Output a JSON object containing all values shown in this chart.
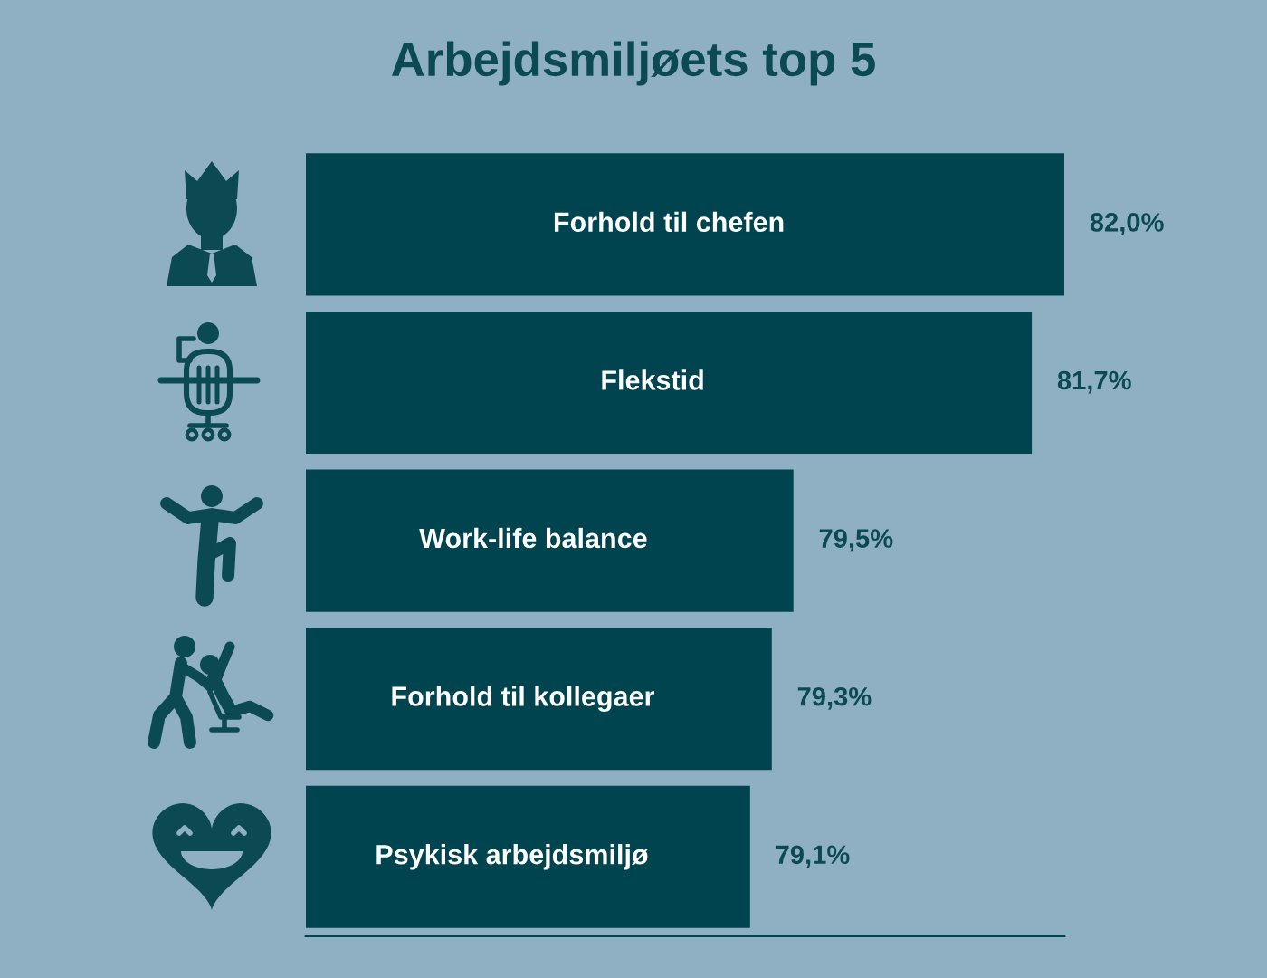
{
  "chart_data": {
    "type": "bar",
    "orientation": "horizontal",
    "title": "Arbejdsmiljøets top 5",
    "categories": [
      "Forhold til chefen",
      "Flekstid",
      "Work-life balance",
      "Forhold til kollegaer",
      "Psykisk arbejdsmiljø"
    ],
    "values": [
      82.0,
      81.7,
      79.5,
      79.3,
      79.1
    ],
    "color": "#00444f",
    "value_labels": [
      "82,0%",
      "81,7%",
      "79,5%",
      "79,3%",
      "79,1%"
    ],
    "xlim": [
      75,
      82.0
    ],
    "tick_labels": "y"
  }
}
